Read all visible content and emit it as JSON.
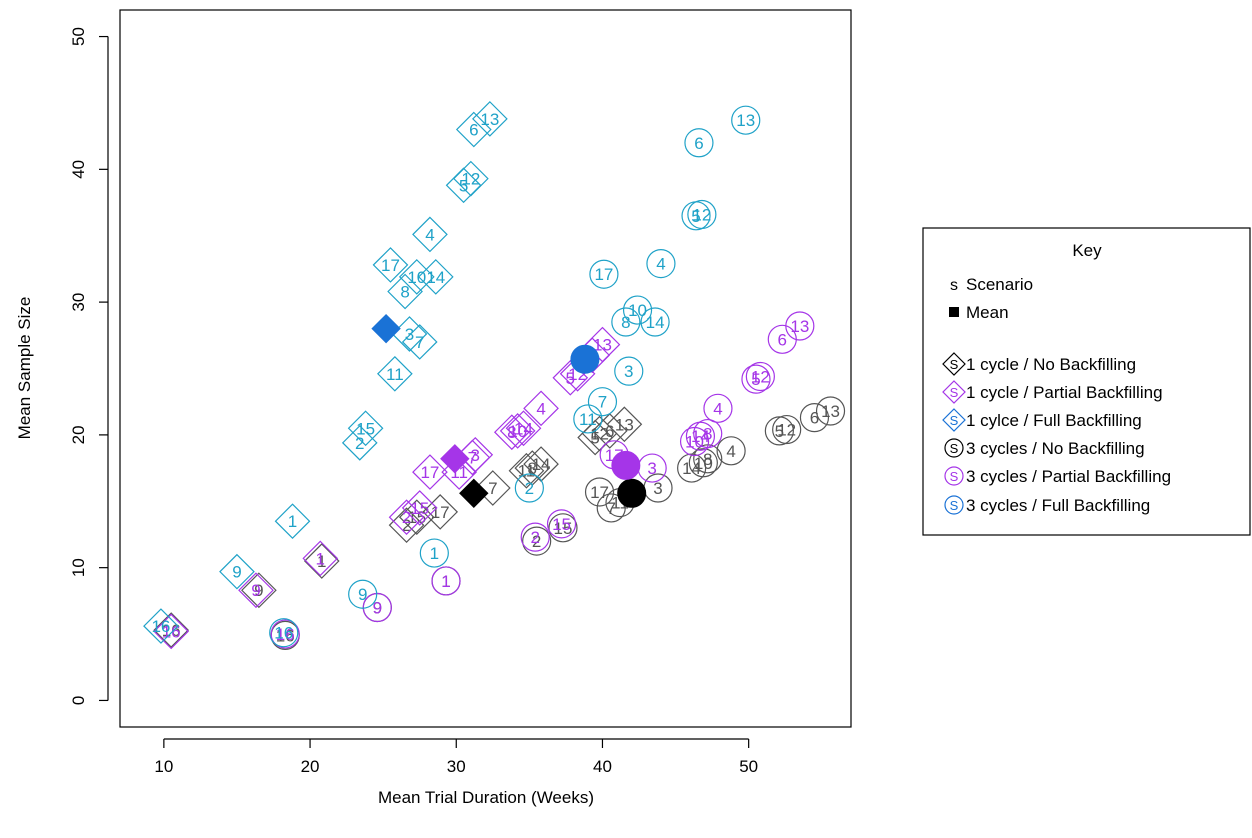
{
  "chart_data": {
    "type": "scatter",
    "xlabel": "Mean Trial Duration (Weeks)",
    "ylabel": "Mean Sample Size",
    "xlim": [
      7,
      57
    ],
    "ylim": [
      -2,
      52
    ],
    "xticks": [
      10,
      20,
      30,
      40,
      50
    ],
    "yticks": [
      0,
      10,
      20,
      30,
      40,
      50
    ],
    "grid": false,
    "legend_position": "right",
    "legend": {
      "title": "Key",
      "items": [
        {
          "symbol": "S",
          "label": "Scenario",
          "kind": "scenario"
        },
        {
          "symbol": "",
          "label": "Mean",
          "kind": "mean"
        },
        {
          "symbol": "S",
          "label": "1 cycle / No Backfilling",
          "kind": "diamond",
          "color": "#000000"
        },
        {
          "symbol": "S",
          "label": "1 cycle / Partial Backfilling",
          "kind": "diamond",
          "color": "#A535E8"
        },
        {
          "symbol": "S",
          "label": "1 cylce / Full Backfilling",
          "kind": "diamond",
          "color": "#1A72D6"
        },
        {
          "symbol": "S",
          "label": "3 cycles / No Backfilling",
          "kind": "circle",
          "color": "#000000"
        },
        {
          "symbol": "S",
          "label": "3 cycles / Partial Backfilling",
          "kind": "circle",
          "color": "#A535E8"
        },
        {
          "symbol": "S",
          "label": "3 cycles / Full Backfilling",
          "kind": "circle",
          "color": "#1A72D6"
        }
      ]
    },
    "series": [
      {
        "shape": "diamond",
        "color": "#555555",
        "mean": [
          31.2,
          15.6
        ],
        "points": [
          {
            "label": "1",
            "x": 20.8,
            "y": 10.5
          },
          {
            "label": "9",
            "x": 16.5,
            "y": 8.3
          },
          {
            "label": "16",
            "x": 10.5,
            "y": 5.3
          },
          {
            "label": "2",
            "x": 26.6,
            "y": 13.2
          },
          {
            "label": "15",
            "x": 27.3,
            "y": 13.8
          },
          {
            "label": "17",
            "x": 28.9,
            "y": 14.2
          },
          {
            "label": "7",
            "x": 32.5,
            "y": 16.0
          },
          {
            "label": "11",
            "x": 34.8,
            "y": 17.3
          },
          {
            "label": "8",
            "x": 35.2,
            "y": 17.5
          },
          {
            "label": "14",
            "x": 35.8,
            "y": 17.8
          },
          {
            "label": "5",
            "x": 39.5,
            "y": 19.8
          },
          {
            "label": "12",
            "x": 39.8,
            "y": 20.1
          },
          {
            "label": "6",
            "x": 40.5,
            "y": 20.3
          },
          {
            "label": "13",
            "x": 41.5,
            "y": 20.8
          }
        ]
      },
      {
        "shape": "diamond",
        "color": "#A535E8",
        "mean": [
          29.9,
          18.2
        ],
        "points": [
          {
            "label": "1",
            "x": 20.7,
            "y": 10.7
          },
          {
            "label": "9",
            "x": 16.3,
            "y": 8.3
          },
          {
            "label": "16",
            "x": 10.5,
            "y": 5.2
          },
          {
            "label": "2",
            "x": 26.6,
            "y": 13.8
          },
          {
            "label": "15",
            "x": 27.5,
            "y": 14.5
          },
          {
            "label": "17",
            "x": 28.2,
            "y": 17.2
          },
          {
            "label": "11",
            "x": 30.2,
            "y": 17.2
          },
          {
            "label": "7",
            "x": 31.1,
            "y": 18.3
          },
          {
            "label": "3",
            "x": 31.3,
            "y": 18.5
          },
          {
            "label": "8",
            "x": 33.8,
            "y": 20.2
          },
          {
            "label": "10",
            "x": 34.2,
            "y": 20.3
          },
          {
            "label": "14",
            "x": 34.6,
            "y": 20.5
          },
          {
            "label": "4",
            "x": 35.8,
            "y": 22.0
          },
          {
            "label": "5",
            "x": 37.8,
            "y": 24.3
          },
          {
            "label": "12",
            "x": 38.3,
            "y": 24.6
          },
          {
            "label": "6",
            "x": 39.3,
            "y": 26.0
          },
          {
            "label": "13",
            "x": 40.0,
            "y": 26.8
          }
        ]
      },
      {
        "shape": "diamond",
        "color": "#1FA2C8",
        "mean": [
          25.2,
          28.0
        ],
        "points": [
          {
            "label": "1",
            "x": 18.8,
            "y": 13.5
          },
          {
            "label": "9",
            "x": 15.0,
            "y": 9.7
          },
          {
            "label": "16",
            "x": 9.8,
            "y": 5.6
          },
          {
            "label": "2",
            "x": 23.4,
            "y": 19.4
          },
          {
            "label": "15",
            "x": 23.8,
            "y": 20.5
          },
          {
            "label": "11",
            "x": 25.8,
            "y": 24.6
          },
          {
            "label": "7",
            "x": 27.5,
            "y": 27.0
          },
          {
            "label": "3",
            "x": 26.8,
            "y": 27.6
          },
          {
            "label": "8",
            "x": 26.5,
            "y": 30.8
          },
          {
            "label": "10",
            "x": 27.3,
            "y": 31.9
          },
          {
            "label": "14",
            "x": 28.6,
            "y": 31.9
          },
          {
            "label": "17",
            "x": 25.5,
            "y": 32.8
          },
          {
            "label": "4",
            "x": 28.2,
            "y": 35.1
          },
          {
            "label": "5",
            "x": 30.5,
            "y": 38.8
          },
          {
            "label": "12",
            "x": 31.0,
            "y": 39.3
          },
          {
            "label": "6",
            "x": 31.2,
            "y": 43.0
          },
          {
            "label": "13",
            "x": 32.3,
            "y": 43.8
          }
        ]
      },
      {
        "shape": "circle",
        "color": "#555555",
        "mean": [
          42.0,
          15.6
        ],
        "points": [
          {
            "label": "1",
            "x": 29.3,
            "y": 9.0
          },
          {
            "label": "9",
            "x": 24.6,
            "y": 7.0
          },
          {
            "label": "16",
            "x": 18.3,
            "y": 4.9
          },
          {
            "label": "2",
            "x": 35.5,
            "y": 12.0
          },
          {
            "label": "15",
            "x": 37.3,
            "y": 13.0
          },
          {
            "label": "17",
            "x": 39.8,
            "y": 15.7
          },
          {
            "label": "7",
            "x": 40.6,
            "y": 14.5
          },
          {
            "label": "11",
            "x": 41.2,
            "y": 14.9
          },
          {
            "label": "3",
            "x": 43.8,
            "y": 16.0
          },
          {
            "label": "14",
            "x": 46.1,
            "y": 17.5
          },
          {
            "label": "10",
            "x": 46.9,
            "y": 17.9
          },
          {
            "label": "8",
            "x": 47.2,
            "y": 18.2
          },
          {
            "label": "4",
            "x": 48.8,
            "y": 18.8
          },
          {
            "label": "5",
            "x": 52.1,
            "y": 20.3
          },
          {
            "label": "12",
            "x": 52.6,
            "y": 20.4
          },
          {
            "label": "6",
            "x": 54.5,
            "y": 21.3
          },
          {
            "label": "13",
            "x": 55.6,
            "y": 21.8
          }
        ]
      },
      {
        "shape": "circle",
        "color": "#A535E8",
        "mean": [
          41.6,
          17.7
        ],
        "points": [
          {
            "label": "1",
            "x": 29.3,
            "y": 9.0
          },
          {
            "label": "9",
            "x": 24.6,
            "y": 7.0
          },
          {
            "label": "16",
            "x": 18.3,
            "y": 5.0
          },
          {
            "label": "2",
            "x": 35.4,
            "y": 12.3
          },
          {
            "label": "15",
            "x": 37.2,
            "y": 13.3
          },
          {
            "label": "17",
            "x": 40.8,
            "y": 18.5
          },
          {
            "label": "3",
            "x": 43.4,
            "y": 17.5
          },
          {
            "label": "10",
            "x": 46.3,
            "y": 19.5
          },
          {
            "label": "14",
            "x": 46.7,
            "y": 19.9
          },
          {
            "label": "8",
            "x": 47.2,
            "y": 20.1
          },
          {
            "label": "4",
            "x": 47.9,
            "y": 22.0
          },
          {
            "label": "5",
            "x": 50.5,
            "y": 24.2
          },
          {
            "label": "12",
            "x": 50.8,
            "y": 24.4
          },
          {
            "label": "6",
            "x": 52.3,
            "y": 27.2
          },
          {
            "label": "13",
            "x": 53.5,
            "y": 28.2
          }
        ]
      },
      {
        "shape": "circle",
        "color": "#1FA2C8",
        "mean": [
          38.8,
          25.7
        ],
        "points": [
          {
            "label": "1",
            "x": 28.5,
            "y": 11.1
          },
          {
            "label": "9",
            "x": 23.6,
            "y": 8.0
          },
          {
            "label": "16",
            "x": 18.2,
            "y": 5.1
          },
          {
            "label": "2",
            "x": 35.0,
            "y": 16.0
          },
          {
            "label": "7",
            "x": 40.0,
            "y": 22.5
          },
          {
            "label": "11",
            "x": 39.0,
            "y": 21.2
          },
          {
            "label": "3",
            "x": 41.8,
            "y": 24.8
          },
          {
            "label": "8",
            "x": 41.6,
            "y": 28.5
          },
          {
            "label": "10",
            "x": 42.4,
            "y": 29.4
          },
          {
            "label": "14",
            "x": 43.6,
            "y": 28.5
          },
          {
            "label": "17",
            "x": 40.1,
            "y": 32.1
          },
          {
            "label": "4",
            "x": 44.0,
            "y": 32.9
          },
          {
            "label": "5",
            "x": 46.4,
            "y": 36.5
          },
          {
            "label": "12",
            "x": 46.8,
            "y": 36.6
          },
          {
            "label": "6",
            "x": 46.6,
            "y": 42.0
          },
          {
            "label": "13",
            "x": 49.8,
            "y": 43.7
          }
        ]
      }
    ],
    "mean_colors": [
      "#000000",
      "#A535E8",
      "#1A72D6",
      "#000000",
      "#A535E8",
      "#1A72D6"
    ]
  }
}
